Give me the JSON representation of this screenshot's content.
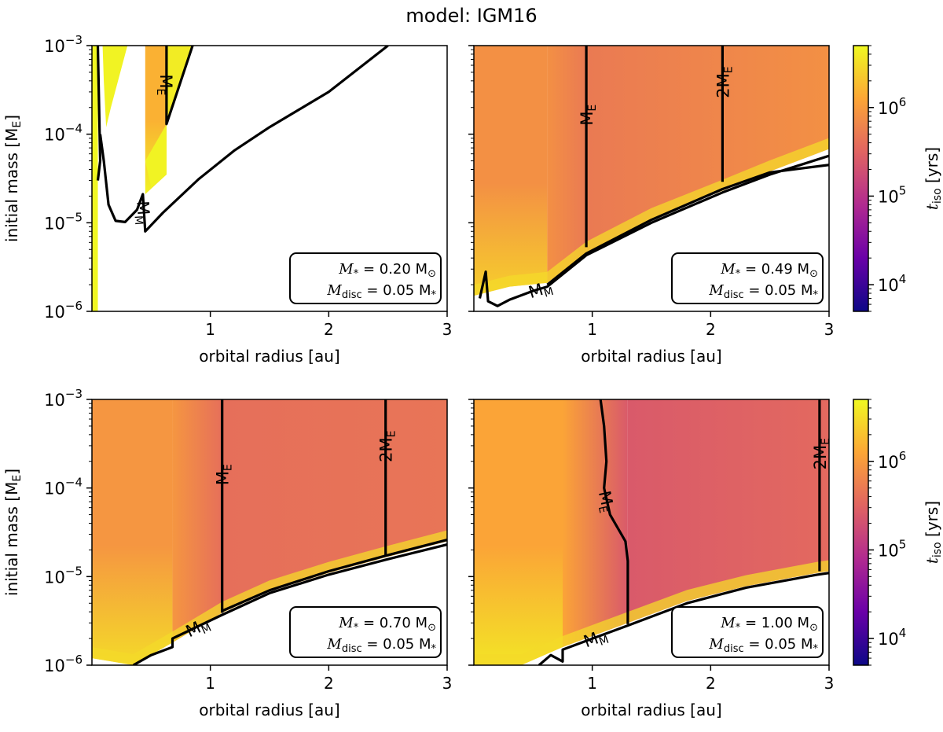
{
  "figure": {
    "title": "model: IGM16",
    "xlabel": "orbital radius [au]",
    "ylabel": "initial mass [M",
    "ylabel_sub": "E",
    "ylabel_close": "]",
    "colorbar_label": "t",
    "colorbar_sub": "iso",
    "colorbar_unit": "[yrs]",
    "colorbar_ticks": [
      {
        "base": "10",
        "exp": "4",
        "value": 10000
      },
      {
        "base": "10",
        "exp": "5",
        "value": 100000
      },
      {
        "base": "10",
        "exp": "6",
        "value": 1000000
      }
    ],
    "colorbar_range": [
      5000,
      5000000
    ],
    "colormap": [
      "#0d0887",
      "#6a00a8",
      "#b12a90",
      "#e16462",
      "#fca636",
      "#f0f921"
    ]
  },
  "chart_data": [
    {
      "type": "heatmap",
      "xlim": [
        0,
        3
      ],
      "ylim": [
        1e-06,
        0.001
      ],
      "yscale": "log",
      "xticks": [
        "1",
        "2",
        "3"
      ],
      "yticks": [
        {
          "base": "10",
          "exp": "−3"
        },
        {
          "base": "10",
          "exp": "−4"
        },
        {
          "base": "10",
          "exp": "−5"
        },
        {
          "base": "10",
          "exp": "−6"
        }
      ],
      "annotation": {
        "line1_lhs": "M",
        "line1_lhs_sub": "*",
        "line1_rhs": " = 0.20 M",
        "line1_unit_sub": "⊙",
        "line2_lhs": "M",
        "line2_lhs_sub": "disc",
        "line2_rhs": " = 0.05 M",
        "line2_rhs_sub": "*"
      },
      "contours": [
        {
          "label": "M",
          "label_sub": "M",
          "points": [
            [
              0.07,
              0.0001
            ],
            [
              0.1,
              5e-05
            ],
            [
              0.14,
              1.6e-05
            ],
            [
              0.2,
              1.05e-05
            ],
            [
              0.28,
              1.02e-05
            ],
            [
              0.38,
              1.4e-05
            ],
            [
              0.43,
              2.1e-05
            ],
            [
              0.45,
              8e-06
            ],
            [
              0.6,
              1.3e-05
            ],
            [
              0.9,
              3.1e-05
            ],
            [
              1.2,
              6.5e-05
            ],
            [
              1.5,
              0.00012
            ],
            [
              2.0,
              0.0003
            ],
            [
              2.5,
              0.001
            ]
          ]
        },
        {
          "label": "M",
          "label_sub": "E",
          "points": [
            [
              0.63,
              0.001
            ],
            [
              0.63,
              0.00013
            ],
            [
              0.85,
              0.001
            ]
          ]
        },
        {
          "label": "",
          "label_sub": "",
          "points": [
            [
              0.05,
              0.001
            ],
            [
              0.07,
              5e-05
            ],
            [
              0.05,
              3e-05
            ]
          ]
        }
      ],
      "regions": [
        {
          "kind": "band",
          "x0": 0.45,
          "x1": 0.63,
          "ybot": 2.1e-05,
          "value": 1500000
        },
        {
          "kind": "wedge",
          "x0": 0.09,
          "x1": 0.3,
          "ybot": 0.00012,
          "value": 4500000
        },
        {
          "kind": "wedge2",
          "x0": 0.63,
          "x1": 0.85,
          "ybot": 0.00013,
          "value": 4000000
        }
      ]
    },
    {
      "type": "heatmap",
      "xlim": [
        0,
        3
      ],
      "ylim": [
        1e-06,
        0.001
      ],
      "yscale": "log",
      "xticks": [
        "1",
        "2",
        "3"
      ],
      "yticks": [],
      "annotation": {
        "line1_lhs": "M",
        "line1_lhs_sub": "*",
        "line1_rhs": " = 0.49 M",
        "line1_unit_sub": "⊙",
        "line2_lhs": "M",
        "line2_lhs_sub": "disc",
        "line2_rhs": " = 0.05 M",
        "line2_rhs_sub": "*"
      },
      "lower_boundary": [
        [
          0.0,
          1.5e-06
        ],
        [
          0.3,
          1.9e-06
        ],
        [
          0.62,
          2.1e-06
        ],
        [
          0.95,
          4.6e-06
        ],
        [
          1.5,
          1.1e-05
        ],
        [
          2.1,
          2.3e-05
        ],
        [
          2.5,
          3.8e-05
        ],
        [
          3.0,
          6.8e-05
        ]
      ],
      "jump_x": 0.62,
      "field": {
        "inner_low": 2500000,
        "inner_high": 800000,
        "mid": 500000,
        "outer": 800000,
        "break_x": 0.95
      },
      "contours": [
        {
          "label": "M",
          "label_sub": "E",
          "points": [
            [
              0.95,
              0.001
            ],
            [
              0.95,
              5.3e-06
            ]
          ]
        },
        {
          "label": "2M",
          "label_sub": "E",
          "points": [
            [
              2.1,
              0.001
            ],
            [
              2.1,
              2.9e-05
            ]
          ]
        },
        {
          "label": "M",
          "label_sub": "M",
          "points": [
            [
              0.05,
              1.4e-06
            ],
            [
              0.1,
              2.8e-06
            ],
            [
              0.12,
              1.3e-06
            ],
            [
              0.2,
              1.15e-06
            ],
            [
              0.3,
              1.35e-06
            ],
            [
              0.5,
              1.7e-06
            ],
            [
              0.62,
              1.9e-06
            ],
            [
              0.95,
              4.3e-06
            ],
            [
              1.5,
              1e-05
            ],
            [
              2.1,
              2.2e-05
            ],
            [
              2.5,
              3.5e-05
            ],
            [
              3.0,
              5.7e-05
            ]
          ]
        },
        {
          "label": "",
          "label_sub": "",
          "points": [
            [
              0.62,
              2e-06
            ],
            [
              0.95,
              4.5e-06
            ],
            [
              1.5,
              1.08e-05
            ],
            [
              2.1,
              2.4e-05
            ],
            [
              2.5,
              3.7e-05
            ],
            [
              3.0,
              4.5e-05
            ]
          ]
        }
      ]
    },
    {
      "type": "heatmap",
      "xlim": [
        0,
        3
      ],
      "ylim": [
        1e-06,
        0.001
      ],
      "yscale": "log",
      "xticks": [
        "1",
        "2",
        "3"
      ],
      "yticks": [
        {
          "base": "10",
          "exp": "−3"
        },
        {
          "base": "10",
          "exp": "−4"
        },
        {
          "base": "10",
          "exp": "−5"
        },
        {
          "base": "10",
          "exp": "−6"
        }
      ],
      "annotation": {
        "line1_lhs": "M",
        "line1_lhs_sub": "*",
        "line1_rhs": " = 0.70 M",
        "line1_unit_sub": "⊙",
        "line2_lhs": "M",
        "line2_lhs_sub": "disc",
        "line2_rhs": " = 0.05 M",
        "line2_rhs_sub": "*"
      },
      "lower_boundary": [
        [
          0.0,
          1.2e-06
        ],
        [
          0.35,
          1e-06
        ],
        [
          0.68,
          1.8e-06
        ],
        [
          1.1,
          3.9e-06
        ],
        [
          1.5,
          6.8e-06
        ],
        [
          2.0,
          1.1e-05
        ],
        [
          2.48,
          1.65e-05
        ],
        [
          3.0,
          2.5e-05
        ]
      ],
      "jump_x": 0.68,
      "field": {
        "inner_low": 3000000,
        "inner_high": 900000,
        "mid": 400000,
        "outer": 450000,
        "break_x": 1.1
      },
      "contours": [
        {
          "label": "M",
          "label_sub": "E",
          "points": [
            [
              1.1,
              0.001
            ],
            [
              1.1,
              3.9e-06
            ]
          ]
        },
        {
          "label": "2M",
          "label_sub": "E",
          "points": [
            [
              2.48,
              0.001
            ],
            [
              2.48,
              1.7e-05
            ]
          ]
        },
        {
          "label": "M",
          "label_sub": "M",
          "points": [
            [
              0.35,
              1e-06
            ],
            [
              0.5,
              1.3e-06
            ],
            [
              0.68,
              1.6e-06
            ],
            [
              0.68,
              2e-06
            ],
            [
              1.1,
              3.7e-06
            ],
            [
              1.5,
              6.5e-06
            ],
            [
              2.0,
              1.05e-05
            ],
            [
              2.48,
              1.55e-05
            ],
            [
              3.0,
              2.3e-05
            ]
          ]
        },
        {
          "label": "",
          "label_sub": "",
          "points": [
            [
              1.1,
              4.1e-06
            ],
            [
              1.5,
              7e-06
            ],
            [
              2.0,
              1.15e-05
            ],
            [
              2.48,
              1.72e-05
            ],
            [
              3.0,
              2.6e-05
            ]
          ]
        }
      ]
    },
    {
      "type": "heatmap",
      "xlim": [
        0,
        3
      ],
      "ylim": [
        1e-06,
        0.001
      ],
      "yscale": "log",
      "xticks": [
        "1",
        "2",
        "3"
      ],
      "yticks": [],
      "annotation": {
        "line1_lhs": "M",
        "line1_lhs_sub": "*",
        "line1_rhs": " = 1.00 M",
        "line1_unit_sub": "⊙",
        "line2_lhs": "M",
        "line2_lhs_sub": "disc",
        "line2_rhs": " = 0.05 M",
        "line2_rhs_sub": "*"
      },
      "lower_boundary": [
        [
          0.0,
          1e-06
        ],
        [
          0.4,
          1e-06
        ],
        [
          0.75,
          1.6e-06
        ],
        [
          1.3,
          3e-06
        ],
        [
          1.8,
          5.3e-06
        ],
        [
          2.3,
          7.8e-06
        ],
        [
          2.9,
          1.1e-05
        ],
        [
          3.0,
          1.15e-05
        ]
      ],
      "jump_x": 0.75,
      "field": {
        "inner_low": 3500000,
        "inner_high": 1200000,
        "mid": 250000,
        "outer": 350000,
        "break_x": 1.3
      },
      "contours": [
        {
          "label": "M",
          "label_sub": "E",
          "points": [
            [
              1.07,
              0.001
            ],
            [
              1.1,
              0.0005
            ],
            [
              1.12,
              0.0002
            ],
            [
              1.1,
              0.0001
            ],
            [
              1.15,
              5e-05
            ],
            [
              1.28,
              2.5e-05
            ],
            [
              1.3,
              1.5e-05
            ],
            [
              1.3,
              2.9e-06
            ]
          ]
        },
        {
          "label": "2M",
          "label_sub": "E",
          "points": [
            [
              2.92,
              0.001
            ],
            [
              2.92,
              1.15e-05
            ]
          ]
        },
        {
          "label": "M",
          "label_sub": "M",
          "points": [
            [
              0.55,
              1e-06
            ],
            [
              0.65,
              1.3e-06
            ],
            [
              0.75,
              1.1e-06
            ],
            [
              0.75,
              1.5e-06
            ],
            [
              1.3,
              2.8e-06
            ],
            [
              1.8,
              5e-06
            ],
            [
              2.3,
              7.5e-06
            ],
            [
              2.9,
              1.05e-05
            ],
            [
              3.0,
              1.1e-05
            ]
          ]
        }
      ]
    }
  ]
}
